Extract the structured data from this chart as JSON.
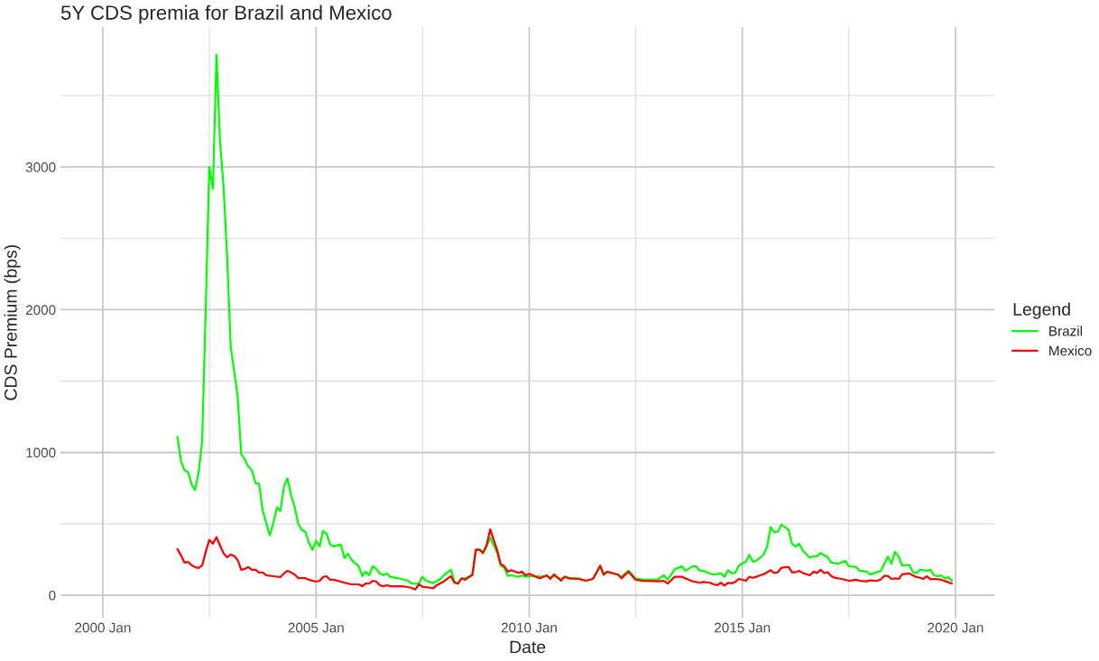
{
  "chart_data": {
    "type": "line",
    "title": "5Y CDS premia for Brazil and Mexico",
    "xlabel": "Date",
    "ylabel": "CDS Premium (bps)",
    "legend_title": "Legend",
    "legend": "right",
    "grid": true,
    "line_style": "solid",
    "xlim": [
      "1999-01-03",
      "2020-12-01"
    ],
    "xticks": [
      {
        "value": "2000-01-01",
        "label": "2000 Jan"
      },
      {
        "value": "2002-07-02",
        "label": null
      },
      {
        "value": "2005-01-01",
        "label": "2005 Jan"
      },
      {
        "value": "2007-07-02",
        "label": null
      },
      {
        "value": "2010-01-01",
        "label": "2010 Jan"
      },
      {
        "value": "2012-07-02",
        "label": null
      },
      {
        "value": "2015-01-01",
        "label": "2015 Jan"
      },
      {
        "value": "2017-07-02",
        "label": null
      },
      {
        "value": "2020-01-01",
        "label": "2020 Jan"
      }
    ],
    "ylim": [
      -160,
      3980
    ],
    "yticks": [
      0,
      {
        "value": 500,
        "label": null
      },
      1000,
      {
        "value": 1500,
        "label": null
      },
      2000,
      {
        "value": 2500,
        "label": null
      },
      3000,
      {
        "value": 3500,
        "label": null
      }
    ],
    "series": [
      {
        "name": "Brazil",
        "color": "#00ff00",
        "x": [
          "2001-10",
          "2001-11",
          "2001-12",
          "2002-01",
          "2002-02",
          "2002-03",
          "2002-04",
          "2002-05",
          "2002-06",
          "2002-07",
          "2002-08",
          "2002-09",
          "2002-10",
          "2002-11",
          "2002-12",
          "2003-01",
          "2003-02",
          "2003-03",
          "2003-04",
          "2003-05",
          "2003-06",
          "2003-07",
          "2003-08",
          "2003-09",
          "2003-10",
          "2003-12",
          "2004-01",
          "2004-02",
          "2004-03",
          "2004-04",
          "2004-05",
          "2004-06",
          "2004-07",
          "2004-08",
          "2004-09",
          "2004-10",
          "2004-11",
          "2004-12",
          "2005-01",
          "2005-02",
          "2005-03",
          "2005-04",
          "2005-05",
          "2005-06",
          "2005-08",
          "2005-09",
          "2005-10",
          "2005-11",
          "2006-01",
          "2006-02",
          "2006-03",
          "2006-04",
          "2006-05",
          "2006-06",
          "2006-07",
          "2006-08",
          "2006-09",
          "2006-10",
          "2006-12",
          "2007-01",
          "2007-03",
          "2007-04",
          "2007-06",
          "2007-07",
          "2007-08",
          "2007-10",
          "2007-11",
          "2007-12",
          "2008-01",
          "2008-02",
          "2008-03",
          "2008-04",
          "2008-05",
          "2008-06",
          "2008-07",
          "2008-09",
          "2008-10",
          "2008-11",
          "2008-12",
          "2009-01",
          "2009-02",
          "2009-04",
          "2009-05",
          "2009-06",
          "2009-07",
          "2009-08",
          "2009-10",
          "2009-11",
          "2009-12",
          "2010-02",
          "2010-04",
          "2010-06",
          "2010-07",
          "2010-08",
          "2010-10",
          "2010-11",
          "2011-01",
          "2011-03",
          "2011-05",
          "2011-07",
          "2011-09",
          "2011-10",
          "2011-11",
          "2012-02",
          "2012-03",
          "2012-05",
          "2012-07",
          "2012-09",
          "2013-01",
          "2013-03",
          "2013-04",
          "2013-06",
          "2013-08",
          "2013-09",
          "2013-11",
          "2013-12",
          "2014-01",
          "2014-02",
          "2014-04",
          "2014-05",
          "2014-07",
          "2014-08",
          "2014-09",
          "2014-10",
          "2014-11",
          "2014-12",
          "2015-02",
          "2015-03",
          "2015-04",
          "2015-05",
          "2015-07",
          "2015-08",
          "2015-09",
          "2015-10",
          "2015-11",
          "2015-12",
          "2016-02",
          "2016-03",
          "2016-04",
          "2016-05",
          "2016-06",
          "2016-08",
          "2016-09",
          "2016-10",
          "2016-11",
          "2017-01",
          "2017-02",
          "2017-04",
          "2017-06",
          "2017-07",
          "2017-09",
          "2017-10",
          "2017-12",
          "2018-01",
          "2018-02",
          "2018-04",
          "2018-06",
          "2018-07",
          "2018-08",
          "2018-09",
          "2018-10",
          "2018-12",
          "2019-01",
          "2019-02",
          "2019-03",
          "2019-05",
          "2019-06",
          "2019-07",
          "2019-08",
          "2019-09",
          "2019-10",
          "2019-11",
          "2019-12"
        ],
        "values": [
          1110,
          939,
          875,
          862,
          774,
          736,
          862,
          1078,
          2016,
          3000,
          2847,
          3786,
          3183,
          2853,
          2372,
          1737,
          1560,
          1395,
          989,
          951,
          900,
          875,
          786,
          780,
          596,
          419,
          507,
          615,
          590,
          761,
          818,
          698,
          621,
          501,
          457,
          444,
          368,
          317,
          380,
          342,
          450,
          431,
          355,
          342,
          355,
          260,
          292,
          247,
          203,
          133,
          165,
          140,
          203,
          184,
          152,
          140,
          152,
          127,
          120,
          114,
          101,
          82,
          80,
          129,
          101,
          85,
          97,
          114,
          139,
          161,
          178,
          97,
          81,
          118,
          118,
          139,
          319,
          323,
          292,
          340,
          404,
          298,
          207,
          192,
          135,
          139,
          129,
          139,
          129,
          135,
          129,
          135,
          122,
          135,
          114,
          129,
          118,
          118,
          101,
          114,
          198,
          144,
          161,
          144,
          129,
          171,
          118,
          108,
          108,
          139,
          108,
          182,
          203,
          171,
          203,
          203,
          171,
          171,
          150,
          144,
          154,
          129,
          175,
          154,
          156,
          207,
          235,
          283,
          235,
          241,
          283,
          340,
          478,
          440,
          446,
          495,
          457,
          361,
          340,
          361,
          313,
          262,
          273,
          273,
          296,
          266,
          228,
          220,
          241,
          203,
          198,
          171,
          165,
          144,
          154,
          171,
          271,
          220,
          304,
          271,
          207,
          213,
          161,
          154,
          178,
          171,
          178,
          139,
          133,
          139,
          118,
          127,
          101
        ]
      },
      {
        "name": "Mexico",
        "color": "#ff0000",
        "x": [
          "2001-10",
          "2001-11",
          "2001-12",
          "2002-01",
          "2002-02",
          "2002-03",
          "2002-04",
          "2002-05",
          "2002-06",
          "2002-07",
          "2002-08",
          "2002-09",
          "2002-10",
          "2002-11",
          "2002-12",
          "2003-01",
          "2003-02",
          "2003-03",
          "2003-04",
          "2003-05",
          "2003-06",
          "2003-07",
          "2003-08",
          "2003-09",
          "2003-10",
          "2003-11",
          "2004-01",
          "2004-03",
          "2004-04",
          "2004-05",
          "2004-06",
          "2004-07",
          "2004-08",
          "2004-10",
          "2004-11",
          "2005-01",
          "2005-02",
          "2005-03",
          "2005-04",
          "2005-05",
          "2005-06",
          "2005-08",
          "2005-10",
          "2005-11",
          "2006-01",
          "2006-02",
          "2006-03",
          "2006-04",
          "2006-05",
          "2006-06",
          "2006-07",
          "2006-08",
          "2006-09",
          "2006-10",
          "2006-12",
          "2007-01",
          "2007-03",
          "2007-04",
          "2007-05",
          "2007-06",
          "2007-07",
          "2007-10",
          "2007-11",
          "2008-01",
          "2008-03",
          "2008-04",
          "2008-05",
          "2008-06",
          "2008-07",
          "2008-09",
          "2008-10",
          "2008-11",
          "2008-12",
          "2009-01",
          "2009-02",
          "2009-04",
          "2009-05",
          "2009-06",
          "2009-07",
          "2009-08",
          "2009-10",
          "2009-11",
          "2009-12",
          "2010-01",
          "2010-03",
          "2010-04",
          "2010-06",
          "2010-07",
          "2010-08",
          "2010-10",
          "2010-11",
          "2010-12",
          "2011-03",
          "2011-05",
          "2011-07",
          "2011-09",
          "2011-10",
          "2011-11",
          "2012-02",
          "2012-03",
          "2012-05",
          "2012-07",
          "2012-09",
          "2013-01",
          "2013-03",
          "2013-04",
          "2013-06",
          "2013-08",
          "2013-10",
          "2013-11",
          "2014-01",
          "2014-02",
          "2014-04",
          "2014-05",
          "2014-06",
          "2014-07",
          "2014-08",
          "2014-09",
          "2014-10",
          "2014-11",
          "2014-12",
          "2015-02",
          "2015-03",
          "2015-04",
          "2015-05",
          "2015-06",
          "2015-07",
          "2015-09",
          "2015-10",
          "2015-11",
          "2015-12",
          "2016-02",
          "2016-03",
          "2016-04",
          "2016-05",
          "2016-06",
          "2016-08",
          "2016-09",
          "2016-10",
          "2016-11",
          "2016-12",
          "2017-01",
          "2017-02",
          "2017-03",
          "2017-05",
          "2017-07",
          "2017-09",
          "2017-10",
          "2017-12",
          "2018-01",
          "2018-03",
          "2018-04",
          "2018-05",
          "2018-06",
          "2018-07",
          "2018-08",
          "2018-09",
          "2018-10",
          "2018-12",
          "2019-01",
          "2019-02",
          "2019-03",
          "2019-04",
          "2019-05",
          "2019-06",
          "2019-07",
          "2019-08",
          "2019-09",
          "2019-11",
          "2019-12"
        ],
        "values": [
          323,
          279,
          228,
          233,
          209,
          197,
          190,
          209,
          304,
          387,
          361,
          406,
          349,
          292,
          266,
          285,
          273,
          247,
          178,
          184,
          197,
          178,
          178,
          159,
          159,
          140,
          133,
          127,
          152,
          171,
          159,
          146,
          120,
          120,
          108,
          95,
          101,
          127,
          133,
          108,
          108,
          95,
          82,
          76,
          76,
          63,
          82,
          82,
          101,
          95,
          70,
          63,
          70,
          63,
          63,
          63,
          57,
          51,
          40,
          76,
          59,
          49,
          70,
          97,
          133,
          87,
          81,
          118,
          108,
          144,
          319,
          317,
          298,
          351,
          461,
          317,
          220,
          203,
          165,
          175,
          156,
          165,
          139,
          150,
          129,
          118,
          139,
          114,
          146,
          101,
          129,
          118,
          114,
          101,
          114,
          207,
          144,
          165,
          144,
          118,
          165,
          108,
          101,
          97,
          101,
          81,
          129,
          129,
          108,
          97,
          87,
          93,
          87,
          76,
          70,
          87,
          68,
          87,
          83,
          93,
          114,
          101,
          129,
          122,
          129,
          139,
          146,
          175,
          156,
          161,
          192,
          198,
          161,
          161,
          171,
          156,
          139,
          165,
          156,
          178,
          156,
          161,
          135,
          122,
          114,
          101,
          108,
          101,
          97,
          104,
          101,
          111,
          135,
          135,
          114,
          118,
          114,
          146,
          152,
          139,
          127,
          122,
          114,
          133,
          111,
          114,
          111,
          108,
          91,
          81
        ]
      }
    ]
  }
}
